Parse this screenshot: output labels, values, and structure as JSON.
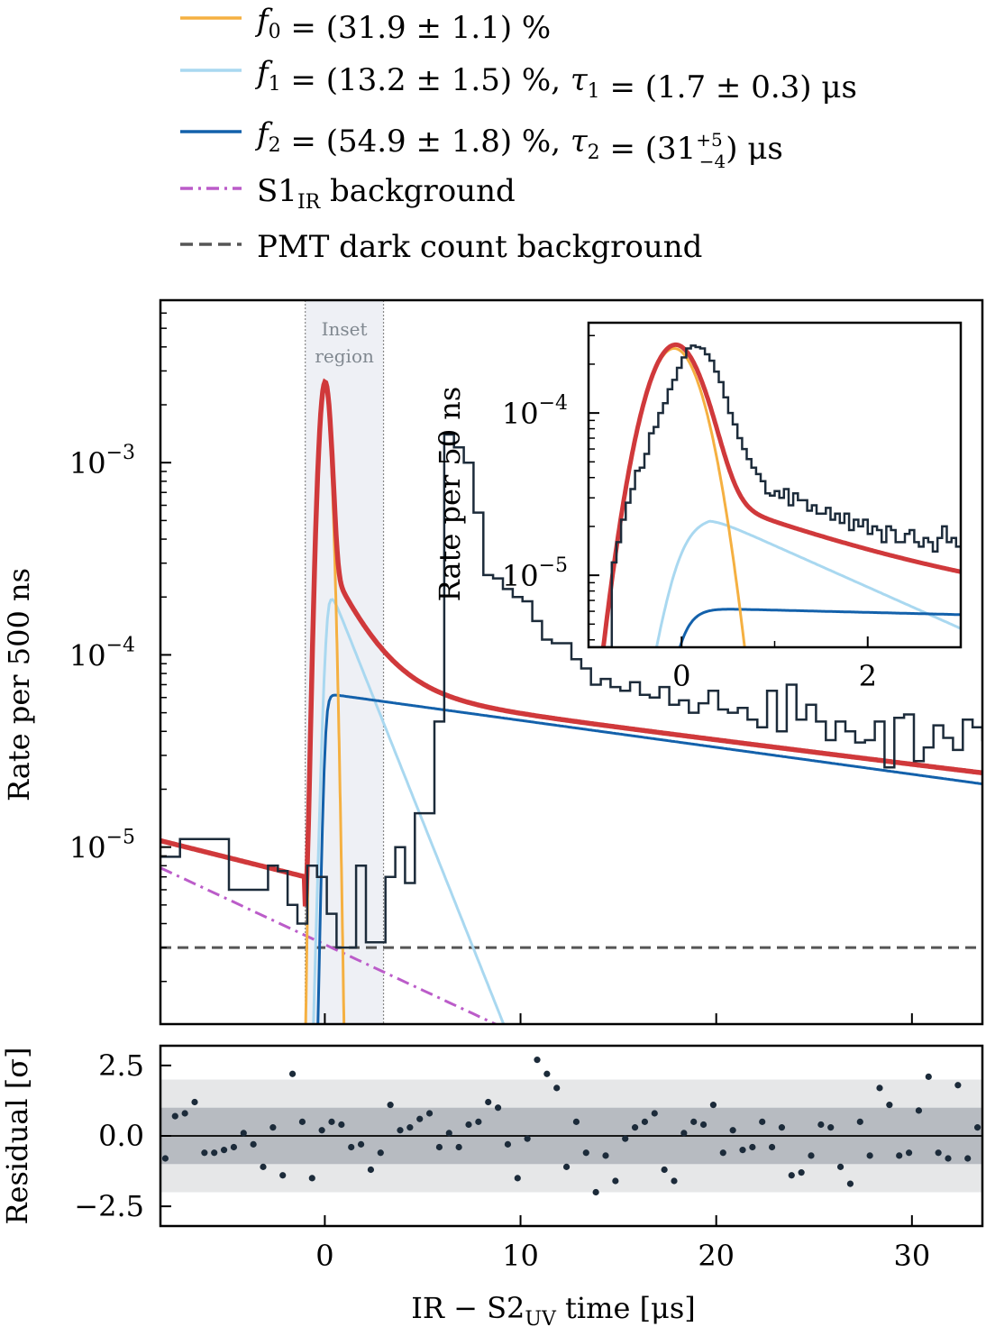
{
  "legend": [
    {
      "math": "f0",
      "text_main": "= (31.9 ± 1.1) %",
      "color": "#f5b041",
      "dash": "solid"
    },
    {
      "math": "f1",
      "text_main": "= (13.2 ± 1.5) %,",
      "tau": "τ1",
      "tau_text": "= (1.7 ± 0.3) μs",
      "color": "#a9d8f0",
      "dash": "solid"
    },
    {
      "math": "f2",
      "text_main": "= (54.9 ± 1.8) %,",
      "tau": "τ2",
      "tau_text": "= (31",
      "tau_sup": "+5",
      "tau_sub": "−4",
      "tau_end": ") μs",
      "color": "#1361ab",
      "dash": "solid"
    },
    {
      "label_main": "S1",
      "label_sub": "IR",
      "label_end": " background",
      "color": "#bb5cc9",
      "dash": "dashdot"
    },
    {
      "label_main": "PMT dark count background",
      "color": "#555555",
      "dash": "dashed"
    }
  ],
  "main_plot": {
    "ylabel": "Rate per 500 ns",
    "ytick_labels": [
      {
        "base": "10",
        "exp": "−5"
      },
      {
        "base": "10",
        "exp": "−4"
      },
      {
        "base": "10",
        "exp": "−3"
      }
    ],
    "inset_region_label_1": "Inset",
    "inset_region_label_2": "region"
  },
  "inset_plot": {
    "ylabel": "Rate per 50 ns",
    "ytick_labels": [
      {
        "base": "10",
        "exp": "−5"
      },
      {
        "base": "10",
        "exp": "−4"
      }
    ],
    "xtick_labels": [
      "0",
      "2"
    ]
  },
  "residual_plot": {
    "ylabel": "Residual [σ]",
    "ytick_labels": [
      "2.5",
      "0.0",
      "−2.5"
    ],
    "xtick_labels": [
      "0",
      "10",
      "20",
      "30"
    ],
    "xlabel_main": "IR − S2",
    "xlabel_sub": "UV",
    "xlabel_end": " time [μs]"
  },
  "chart_data": [
    {
      "type": "line",
      "title": "",
      "xlabel": "IR − S2UV time [μs]",
      "ylabel": "Rate per 500 ns",
      "yscale": "log",
      "xlim": [
        -8.4,
        33.6
      ],
      "ylim": [
        1.2e-06,
        0.007
      ],
      "inset_region": [
        -1,
        3
      ],
      "colors": {
        "data": "#1c2b3a",
        "total_fit": "#d0393b",
        "f0": "#f5b041",
        "f1": "#a9d8f0",
        "f2": "#1361ab",
        "s1_bg": "#bb5cc9",
        "dark": "#555555"
      },
      "histogram": {
        "bin_width": 0.5,
        "x_start": -8.4,
        "values": [
          8.9e-06,
          8.9e-06,
          1.1e-05,
          1.1e-05,
          1.1e-05,
          1.1e-05,
          1.1e-05,
          6e-06,
          6e-06,
          6e-06,
          6e-06,
          8e-06,
          7.5e-06,
          5e-06,
          4e-06,
          8e-06,
          7e-06,
          4.5e-06,
          3e-06,
          3e-06,
          8e-06,
          3.2e-06,
          3.2e-06,
          7e-06,
          1e-05,
          6.5e-06,
          1.5e-05,
          1.5e-05,
          4.5e-05,
          0.0014,
          0.0012,
          0.001,
          0.00055,
          0.00026,
          0.00025,
          0.00022,
          0.0002,
          0.00019,
          0.00015,
          0.00012,
          0.000115,
          0.000115,
          9.5e-05,
          8.5e-05,
          7e-05,
          7.5e-05,
          6.8e-05,
          6.5e-05,
          7.2e-05,
          6.2e-05,
          6e-05,
          6.8e-05,
          5.5e-05,
          5.8e-05,
          5e-05,
          5.6e-05,
          6.5e-05,
          5.2e-05,
          5e-05,
          5.3e-05,
          4.6e-05,
          4.2e-05,
          6.5e-05,
          4e-05,
          7e-05,
          4.6e-05,
          5.5e-05,
          4.5e-05,
          3.6e-05,
          4.5e-05,
          4e-05,
          3.5e-05,
          3.6e-05,
          4.5e-05,
          2.6e-05,
          4.7e-05,
          4.9e-05,
          2.8e-05,
          3.3e-05,
          4.3e-05,
          3.7e-05,
          3.2e-05,
          4.6e-05,
          4.2e-05,
          3.6e-05
        ],
        "description_of_bins": "rate per 500 ns bin"
      },
      "fit_params": {
        "A0": 0.0025,
        "mu0": 0.0,
        "sigma0": 0.25,
        "A1": 0.00023,
        "tau1": 1.7,
        "rise1": 0.08,
        "A2": 6.3e-05,
        "tau2": 31,
        "rise2": 0.05,
        "s1_bg_at_minus8": 7.8e-06,
        "s1_bg_slope_decades_per_us": -0.0475,
        "dark_count": 3e-06,
        "pre_trigger_total_at_minus8": 1.08e-05,
        "pre_trigger_total_at_minus1": 7e-06
      }
    },
    {
      "type": "line",
      "title": "",
      "xlabel": "",
      "ylabel": "Rate per 50 ns",
      "yscale": "log",
      "xlim": [
        -1.0,
        3.0
      ],
      "ylim": [
        3.6e-06,
        0.00036
      ],
      "histogram": {
        "bin_width": 0.05,
        "x_start": -1.0,
        "values": [
          3.6e-06,
          3.6e-06,
          3.6e-06,
          3.6e-06,
          3.6e-06,
          1.2e-05,
          1.6e-05,
          2.2e-05,
          2.8e-05,
          3.4e-05,
          4.4e-05,
          4.6e-05,
          5.6e-05,
          7.5e-05,
          8.2e-05,
          0.0001,
          0.000115,
          0.00014,
          0.00016,
          0.00019,
          0.00022,
          0.00025,
          0.00026,
          0.000255,
          0.00025,
          0.00023,
          0.00021,
          0.00018,
          0.000155,
          0.000125,
          0.0001,
          8.5e-05,
          7e-05,
          6e-05,
          5.2e-05,
          4.6e-05,
          4.2e-05,
          3.8e-05,
          3.2e-05,
          3.1e-05,
          3.3e-05,
          3e-05,
          3.4e-05,
          2.7e-05,
          3.2e-05,
          2.9e-05,
          2.9e-05,
          2.5e-05,
          2.7e-05,
          2.4e-05,
          2.4e-05,
          2.6e-05,
          2.2e-05,
          2.4e-05,
          2.1e-05,
          2.4e-05,
          1.9e-05,
          2.2e-05,
          2e-05,
          2.2e-05,
          1.8e-05,
          2e-05,
          1.9e-05,
          1.6e-05,
          2e-05,
          1.9e-05,
          1.6e-05,
          1.6e-05,
          1.8e-05,
          1.9e-05,
          1.6e-05,
          1.5e-05,
          1.7e-05,
          1.6e-05,
          1.4e-05,
          1.7e-05,
          2e-05,
          1.6e-05,
          1.7e-05,
          1.5e-05
        ]
      }
    },
    {
      "type": "scatter",
      "title": "",
      "xlabel": "IR − S2UV time [μs]",
      "ylabel": "Residual [σ]",
      "xlim": [
        -8.4,
        33.6
      ],
      "ylim": [
        -3.2,
        3.2
      ],
      "bands": [
        [
          -2,
          2
        ],
        [
          -1,
          1
        ]
      ],
      "x_start": -8.15,
      "x_step": 0.5,
      "y": [
        -0.8,
        0.7,
        0.8,
        1.2,
        -0.6,
        -0.6,
        -0.5,
        -0.4,
        0.1,
        -0.3,
        -1.1,
        0.3,
        -1.4,
        2.2,
        0.5,
        -1.5,
        0.2,
        0.5,
        0.4,
        -0.4,
        -0.3,
        -1.2,
        -0.6,
        1.1,
        0.2,
        0.3,
        0.6,
        0.8,
        -0.4,
        0.1,
        -0.4,
        0.4,
        0.5,
        1.2,
        1.0,
        -0.3,
        -1.5,
        -0.1,
        2.7,
        2.2,
        1.7,
        -1.1,
        0.5,
        -0.6,
        -2.0,
        -0.7,
        -1.6,
        -0.1,
        0.3,
        0.5,
        0.8,
        -1.2,
        -1.6,
        0.1,
        0.5,
        0.4,
        1.1,
        -0.6,
        0.2,
        -0.5,
        -0.4,
        0.5,
        -0.4,
        0.3,
        -1.4,
        -1.3,
        -0.7,
        0.4,
        0.3,
        -1.1,
        -1.7,
        0.5,
        -0.7,
        1.7,
        1.1,
        -0.7,
        -0.6,
        0.9,
        2.1,
        -0.6,
        -0.8,
        1.8,
        -0.8,
        0.3,
        0.5,
        1.1,
        -0.6,
        1.0,
        0.1,
        1.1
      ]
    }
  ]
}
